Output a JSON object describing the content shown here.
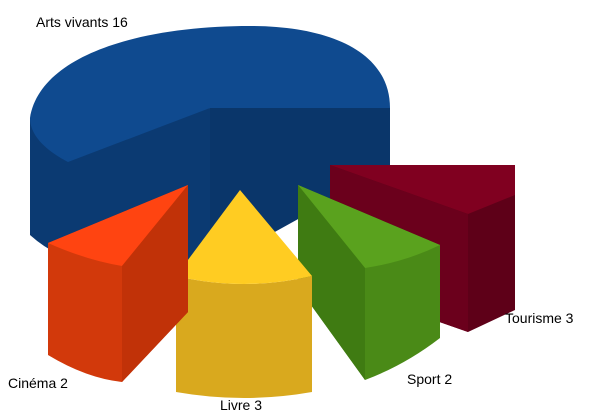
{
  "chart_data": {
    "type": "pie",
    "style": "3d-exploded",
    "title": "",
    "slices": [
      {
        "label": "Arts vivants",
        "value": 16,
        "color": "#0f4a8f",
        "side_color": "#0b3a72"
      },
      {
        "label": "Tourisme",
        "value": 3,
        "color": "#800020",
        "side_color": "#5e0018"
      },
      {
        "label": "Sport",
        "value": 2,
        "color": "#5aa21e",
        "side_color": "#4a8a17"
      },
      {
        "label": "Livre",
        "value": 3,
        "color": "#ffcc22",
        "side_color": "#d9a91e"
      },
      {
        "label": "Cinéma",
        "value": 2,
        "color": "#ff4411",
        "side_color": "#d2390b"
      }
    ],
    "labels": [
      "Arts vivants 16",
      "Tourisme 3",
      "Sport 2",
      "Livre 3",
      "Cinéma 2"
    ]
  }
}
